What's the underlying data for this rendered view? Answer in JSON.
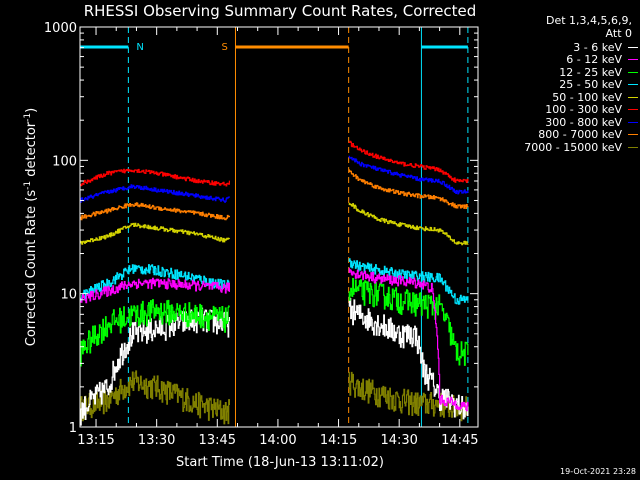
{
  "chart_data": {
    "type": "line",
    "title": "RHESSI Observing Summary Count Rates, Corrected",
    "xlabel": "Start Time (18-Jun-13 13:11:02)",
    "ylabel": "Corrected Count Rate (s",
    "ylabel_sup1": "-1",
    "ylabel_mid": " detector",
    "ylabel_sup2": "-1",
    "ylabel_end": ")",
    "y_scale": "log",
    "ylim": [
      1,
      1000
    ],
    "xlim": [
      "13:11:02",
      "14:49:30"
    ],
    "x_ticks": [
      "13:15",
      "13:30",
      "13:45",
      "14:00",
      "14:15",
      "14:30",
      "14:45"
    ],
    "y_ticks": [
      "1",
      "10",
      "100",
      "1000"
    ],
    "legend_title": [
      "Det 1,3,4,5,6,9,",
      "Att 0"
    ],
    "timestamp": "19-Oct-2021 23:28",
    "flags": [
      {
        "label": "N",
        "color": "#00e5ff",
        "start": "13:11:02",
        "end": "13:23:00"
      },
      {
        "label": "S",
        "color": "#ff8c00",
        "start": "13:49:30",
        "end": "14:17:30"
      },
      {
        "label": "",
        "color": "#00e5ff",
        "start": "14:35:30",
        "end": "14:47:00"
      }
    ],
    "vlines": [
      {
        "time": "13:11:02",
        "color": "#00e5ff",
        "style": "solid"
      },
      {
        "time": "13:23:00",
        "color": "#00e5ff",
        "style": "dashed"
      },
      {
        "time": "13:49:30",
        "color": "#ff8c00",
        "style": "solid"
      },
      {
        "time": "14:17:30",
        "color": "#ff8c00",
        "style": "dashed"
      },
      {
        "time": "14:35:30",
        "color": "#00e5ff",
        "style": "solid"
      },
      {
        "time": "14:47:00",
        "color": "#00e5ff",
        "style": "dashed"
      }
    ],
    "gap": [
      "13:48:00",
      "14:17:30"
    ],
    "series": [
      {
        "name": "3 - 6 keV",
        "color": "#ffffff",
        "x": [
          "13:11",
          "13:18",
          "13:20",
          "13:24",
          "13:30",
          "13:40",
          "13:47",
          "14:17",
          "14:20",
          "14:25",
          "14:30",
          "14:34",
          "14:36",
          "14:40",
          "14:44",
          "14:47"
        ],
        "y": [
          1.3,
          2.0,
          3.0,
          5.0,
          5.5,
          6.5,
          6.0,
          8.0,
          7.0,
          6.0,
          5.0,
          5.0,
          2.7,
          1.7,
          1.5,
          1.3
        ]
      },
      {
        "name": "6 - 12 keV",
        "color": "#ff00ff",
        "x": [
          "13:11",
          "13:18",
          "13:24",
          "13:30",
          "13:40",
          "13:47",
          "14:17",
          "14:20",
          "14:25",
          "14:30",
          "14:35",
          "14:38",
          "14:40",
          "14:44",
          "14:47"
        ],
        "y": [
          9.0,
          10.5,
          12.0,
          12.0,
          11.5,
          11.0,
          15.0,
          14.0,
          13.0,
          12.5,
          12.0,
          11.0,
          1.6,
          1.5,
          1.4
        ]
      },
      {
        "name": "12 - 25 keV",
        "color": "#00ff00",
        "x": [
          "13:11",
          "13:18",
          "13:24",
          "13:30",
          "13:40",
          "13:47",
          "14:17",
          "14:20",
          "14:25",
          "14:30",
          "14:35",
          "14:40",
          "14:44",
          "14:47"
        ],
        "y": [
          3.6,
          6.0,
          7.0,
          7.5,
          7.0,
          6.5,
          11.5,
          10.5,
          10.0,
          9.0,
          8.5,
          8.0,
          3.6,
          3.6
        ]
      },
      {
        "name": "25 - 50 keV",
        "color": "#00e5ff",
        "x": [
          "13:11",
          "13:18",
          "13:24",
          "13:30",
          "13:40",
          "13:47",
          "14:17",
          "14:20",
          "14:25",
          "14:30",
          "14:35",
          "14:40",
          "14:44",
          "14:47"
        ],
        "y": [
          9.5,
          12.0,
          15.5,
          15.0,
          13.0,
          11.5,
          18.0,
          16.0,
          15.0,
          14.0,
          13.5,
          13.0,
          9.0,
          9.0
        ]
      },
      {
        "name": "50 - 100 keV",
        "color": "#d4d400",
        "x": [
          "13:11",
          "13:18",
          "13:24",
          "13:30",
          "13:40",
          "13:47",
          "14:17",
          "14:20",
          "14:25",
          "14:30",
          "14:35",
          "14:40",
          "14:44",
          "14:47"
        ],
        "y": [
          24.0,
          27.0,
          33.0,
          31.0,
          28.0,
          25.0,
          50.0,
          42.0,
          36.0,
          33.0,
          31.0,
          30.0,
          24.0,
          24.0
        ]
      },
      {
        "name": "100 - 300 keV",
        "color": "#ff0000",
        "x": [
          "13:11",
          "13:18",
          "13:24",
          "13:30",
          "13:40",
          "13:47",
          "14:17",
          "14:20",
          "14:25",
          "14:30",
          "14:35",
          "14:40",
          "14:44",
          "14:47"
        ],
        "y": [
          66.0,
          80.0,
          85.0,
          80.0,
          70.0,
          66.0,
          140.0,
          120.0,
          105.0,
          95.0,
          90.0,
          85.0,
          70.0,
          70.0
        ]
      },
      {
        "name": "300 - 800 keV",
        "color": "#0000ff",
        "x": [
          "13:11",
          "13:18",
          "13:24",
          "13:30",
          "13:40",
          "13:47",
          "14:17",
          "14:20",
          "14:25",
          "14:30",
          "14:35",
          "14:40",
          "14:44",
          "14:47"
        ],
        "y": [
          50.0,
          58.0,
          64.0,
          60.0,
          54.0,
          50.0,
          110.0,
          95.0,
          85.0,
          78.0,
          72.0,
          70.0,
          58.0,
          58.0
        ]
      },
      {
        "name": "800 - 7000 keV",
        "color": "#ff7f00",
        "x": [
          "13:11",
          "13:18",
          "13:24",
          "13:30",
          "13:40",
          "13:47",
          "14:17",
          "14:20",
          "14:25",
          "14:30",
          "14:35",
          "14:40",
          "14:44",
          "14:47"
        ],
        "y": [
          37.0,
          42.0,
          47.0,
          44.0,
          40.0,
          37.0,
          85.0,
          72.0,
          62.0,
          57.0,
          54.0,
          52.0,
          45.0,
          45.0
        ]
      },
      {
        "name": "7000 - 15000 keV",
        "color": "#808000",
        "x": [
          "13:11",
          "13:18",
          "13:24",
          "13:30",
          "13:40",
          "13:47",
          "14:17",
          "14:20",
          "14:25",
          "14:30",
          "14:35",
          "14:40",
          "14:44",
          "14:47"
        ],
        "y": [
          1.4,
          1.6,
          2.2,
          2.0,
          1.5,
          1.3,
          2.3,
          2.0,
          1.8,
          1.6,
          1.5,
          1.5,
          1.4,
          1.4
        ]
      }
    ]
  }
}
